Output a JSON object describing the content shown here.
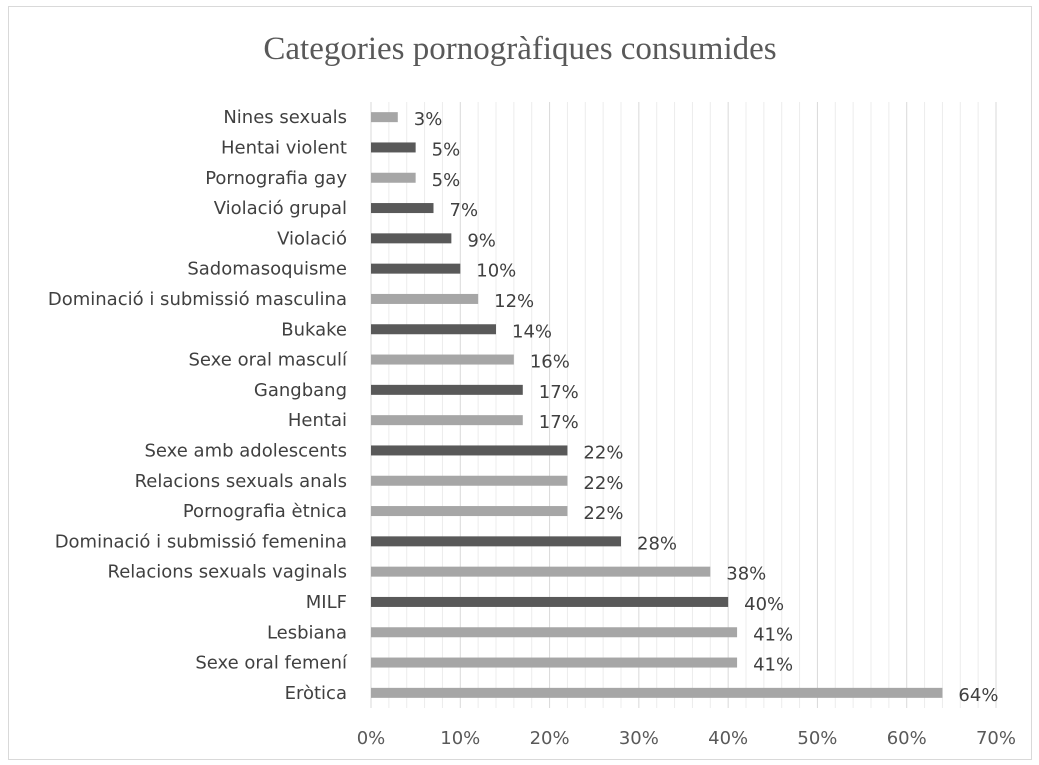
{
  "chart_data": {
    "type": "bar",
    "orientation": "horizontal",
    "title": "Categories pornogràfiques consumides",
    "xlabel": "",
    "ylabel": "",
    "xlim": [
      0,
      70
    ],
    "x_ticks": [
      "0%",
      "10%",
      "20%",
      "30%",
      "40%",
      "50%",
      "60%",
      "70%"
    ],
    "grid": true,
    "legend": "none",
    "colors": {
      "light": "#a6a6a6",
      "dark": "#595959"
    },
    "bars": [
      {
        "label": "Eròtica",
        "value": 64,
        "text": "64%",
        "shade": "light"
      },
      {
        "label": "Sexe oral femení",
        "value": 41,
        "text": "41%",
        "shade": "light"
      },
      {
        "label": "Lesbiana",
        "value": 41,
        "text": "41%",
        "shade": "light"
      },
      {
        "label": "MILF",
        "value": 40,
        "text": "40%",
        "shade": "dark"
      },
      {
        "label": "Relacions sexuals vaginals",
        "value": 38,
        "text": "38%",
        "shade": "light"
      },
      {
        "label": "Dominació i submissió femenina",
        "value": 28,
        "text": "28%",
        "shade": "dark"
      },
      {
        "label": "Pornografia ètnica",
        "value": 22,
        "text": "22%",
        "shade": "light"
      },
      {
        "label": "Relacions sexuals anals",
        "value": 22,
        "text": "22%",
        "shade": "light"
      },
      {
        "label": "Sexe amb adolescents",
        "value": 22,
        "text": "22%",
        "shade": "dark"
      },
      {
        "label": "Hentai",
        "value": 17,
        "text": "17%",
        "shade": "light"
      },
      {
        "label": "Gangbang",
        "value": 17,
        "text": "17%",
        "shade": "dark"
      },
      {
        "label": "Sexe oral masculí",
        "value": 16,
        "text": "16%",
        "shade": "light"
      },
      {
        "label": "Bukake",
        "value": 14,
        "text": "14%",
        "shade": "dark"
      },
      {
        "label": "Dominació i submissió masculina",
        "value": 12,
        "text": "12%",
        "shade": "light"
      },
      {
        "label": "Sadomasoquisme",
        "value": 10,
        "text": "10%",
        "shade": "dark"
      },
      {
        "label": "Violació",
        "value": 9,
        "text": "9%",
        "shade": "dark"
      },
      {
        "label": "Violació grupal",
        "value": 7,
        "text": "7%",
        "shade": "dark"
      },
      {
        "label": "Pornografia gay",
        "value": 5,
        "text": "5%",
        "shade": "light"
      },
      {
        "label": "Hentai violent",
        "value": 5,
        "text": "5%",
        "shade": "dark"
      },
      {
        "label": "Nines sexuals",
        "value": 3,
        "text": "3%",
        "shade": "light"
      }
    ]
  }
}
